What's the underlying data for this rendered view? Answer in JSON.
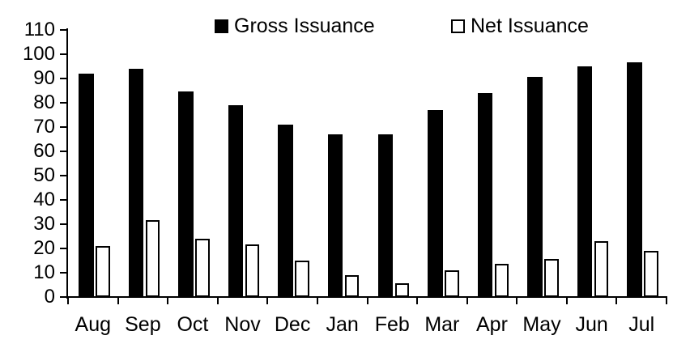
{
  "chart_data": {
    "type": "bar",
    "title": "",
    "xlabel": "",
    "ylabel": "",
    "categories": [
      "Aug",
      "Sep",
      "Oct",
      "Nov",
      "Dec",
      "Jan",
      "Feb",
      "Mar",
      "Apr",
      "May",
      "Jun",
      "Jul"
    ],
    "series": [
      {
        "name": "Gross Issuance",
        "fill": "#000000",
        "values": [
          92,
          94,
          84.5,
          79,
          71,
          67,
          67,
          77,
          84,
          90.5,
          95,
          96.5
        ]
      },
      {
        "name": "Net Issuance",
        "fill": "#ffffff",
        "stroke": "#000000",
        "values": [
          21,
          31.5,
          24,
          21.5,
          15,
          9,
          5.5,
          11,
          13.5,
          15.5,
          23,
          19
        ]
      }
    ],
    "ylim": [
      0,
      110
    ],
    "y_tick_step": 10,
    "y_tick_labels": [
      "110",
      "100",
      "90",
      "80",
      "70",
      "60",
      "50",
      "40",
      "30",
      "20",
      "10",
      "0"
    ],
    "grid": false,
    "legend_position": "top",
    "background": "#ffffff",
    "axis_color": "#000000"
  }
}
